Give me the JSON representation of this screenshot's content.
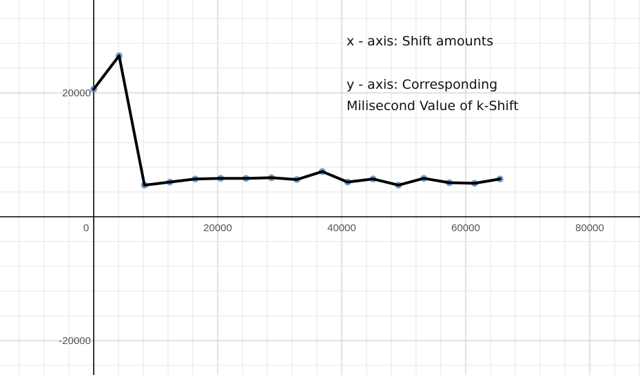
{
  "chart_data": {
    "type": "line",
    "title": "",
    "xlabel": "",
    "ylabel": "",
    "xlim": [
      -15000,
      88000
    ],
    "ylim": [
      -25000,
      35000
    ],
    "x_ticks": [
      0,
      20000,
      40000,
      60000,
      80000
    ],
    "x_tick_labels": [
      "0",
      "20000",
      "40000",
      "60000",
      "80000"
    ],
    "y_ticks": [
      20000,
      -20000
    ],
    "y_tick_labels": [
      "20000",
      "-20000"
    ],
    "grid": true,
    "series": [
      {
        "color": "#5b8ec9",
        "line_color": "#000000",
        "x": [
          0,
          4096,
          8192,
          12288,
          16384,
          20480,
          24576,
          28672,
          32768,
          36864,
          40960,
          45056,
          49152,
          53248,
          57344,
          61440,
          65536
        ],
        "y": [
          20600,
          26000,
          5100,
          5600,
          6100,
          6200,
          6200,
          6300,
          6000,
          7300,
          5600,
          6100,
          5100,
          6200,
          5500,
          5400,
          6100
        ]
      }
    ]
  },
  "annotations": {
    "line1": "x - axis: Shift amounts",
    "line2": "y - axis: Corresponding",
    "line3": "Milisecond Value of k-Shift"
  }
}
